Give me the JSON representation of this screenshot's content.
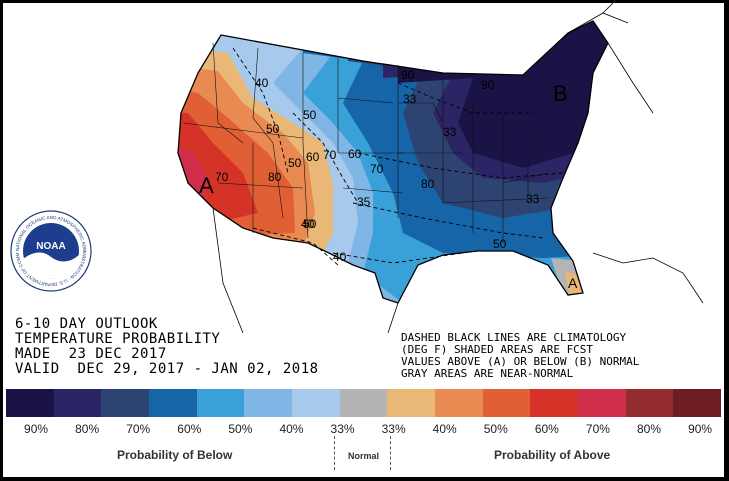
{
  "map": {
    "contour_labels": [
      "40",
      "50",
      "60",
      "70",
      "80",
      "90",
      "50",
      "60",
      "70",
      "80",
      "90",
      "50",
      "40",
      "35",
      "50",
      "33",
      "33",
      "50",
      "40",
      "33"
    ],
    "label_A": "A",
    "label_B": "B",
    "label_A2": "A",
    "label_A3": "70"
  },
  "caption": {
    "line1": "6-10 DAY OUTLOOK",
    "line2": "TEMPERATURE PROBABILITY",
    "line3": "MADE  23 DEC 2017",
    "line4": "VALID  DEC 29, 2017 - JAN 02, 2018"
  },
  "legend_note": {
    "line1": "DASHED BLACK LINES ARE CLIMATOLOGY",
    "line2": "(DEG F) SHADED AREAS ARE FCST",
    "line3": "VALUES ABOVE (A) OR BELOW (B) NORMAL",
    "line4": "GRAY AREAS ARE NEAR-NORMAL"
  },
  "logo": {
    "text": "NOAA",
    "ring_text": "NATIONAL OCEANIC AND ATMOSPHERIC ADMINISTRATION · U.S. DEPARTMENT OF COMMERCE"
  },
  "scale": {
    "colors": [
      "#1a1446",
      "#2b2465",
      "#2d4473",
      "#1565a8",
      "#3aa0d8",
      "#7fb6e6",
      "#a6c9ec",
      "#b4b4b4",
      "#e9b877",
      "#e98a52",
      "#e05f35",
      "#d63328",
      "#d12e4b",
      "#922c31",
      "#6e1d22"
    ],
    "percents": [
      "90%",
      "80%",
      "70%",
      "60%",
      "50%",
      "40%",
      "33%",
      "33%",
      "40%",
      "50%",
      "60%",
      "70%",
      "80%",
      "90%"
    ],
    "below_label": "Probability of Below",
    "normal_label": "Normal",
    "above_label": "Probability of Above"
  }
}
